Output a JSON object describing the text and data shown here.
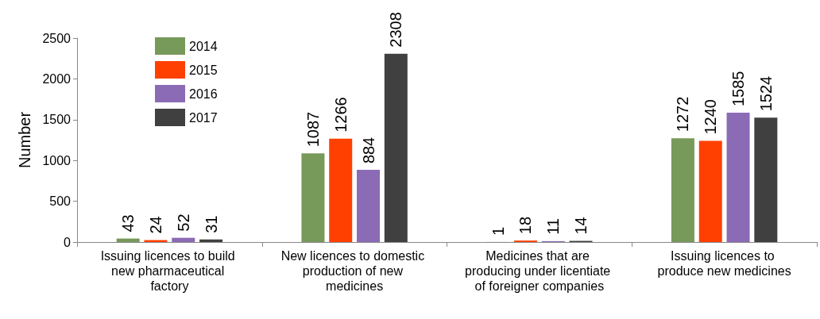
{
  "chart_data": {
    "type": "bar",
    "ylabel": "Number",
    "categories": [
      "Issuing licences to build new pharmaceutical factory",
      "New licences to domestic production of new medicines",
      "Medicines that are producing under licentiate of foreigner companies",
      "Issuing licences to produce new medicines"
    ],
    "series": [
      {
        "name": "2014",
        "color": "#77995a",
        "values": [
          43,
          1087,
          1,
          1272
        ]
      },
      {
        "name": "2015",
        "color": "#ff4000",
        "values": [
          24,
          1266,
          18,
          1240
        ]
      },
      {
        "name": "2016",
        "color": "#8b6bb5",
        "values": [
          52,
          884,
          11,
          1585
        ]
      },
      {
        "name": "2017",
        "color": "#404040",
        "values": [
          31,
          2308,
          14,
          1524
        ]
      }
    ],
    "ylim": [
      0,
      2500
    ],
    "yticks": [
      0,
      500,
      1000,
      1500,
      2000,
      2500
    ],
    "grid": false,
    "legend": "top left",
    "data_labels": true
  }
}
